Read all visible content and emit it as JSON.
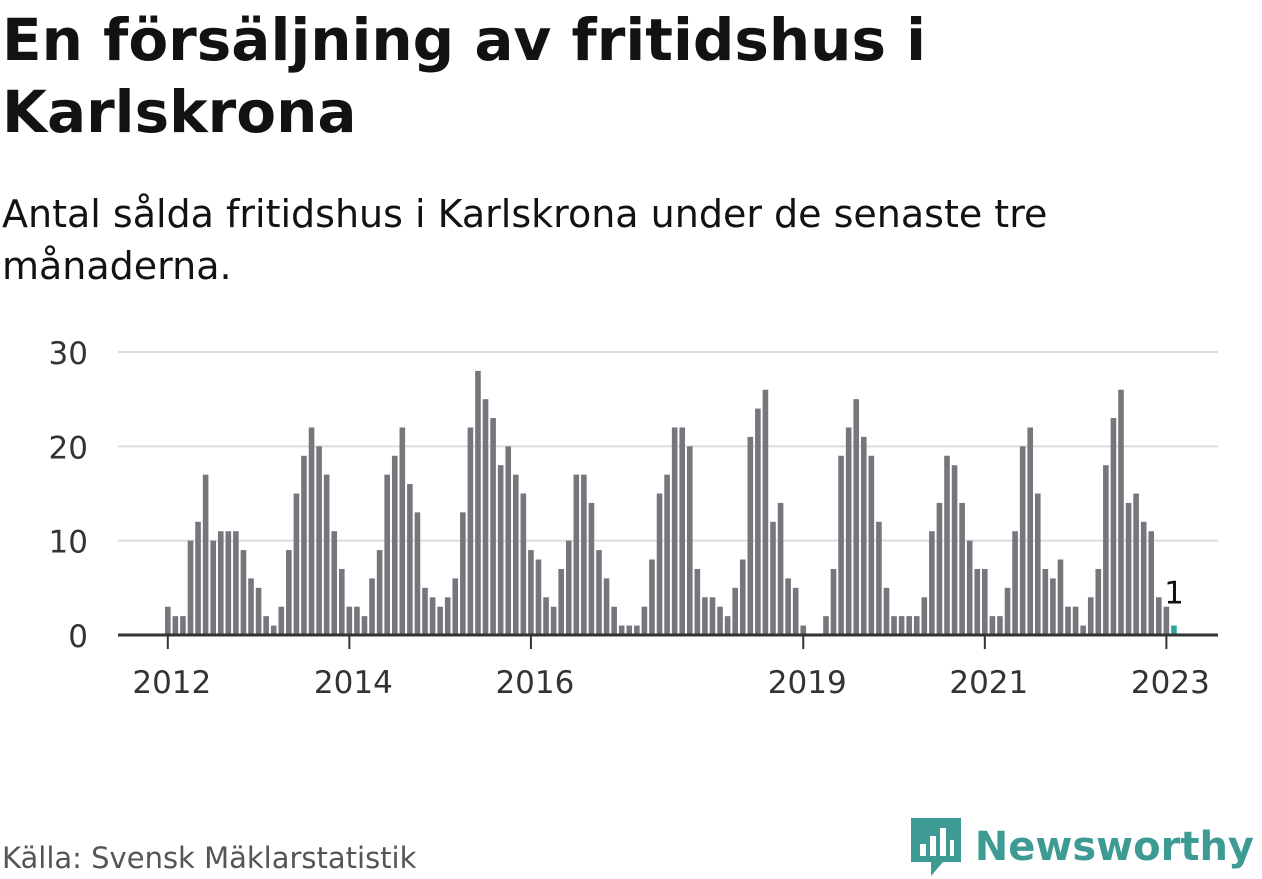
{
  "title": "En försäljning av fritidshus i Karlskrona",
  "subtitle": "Antal sålda fritidshus i Karlskrona under de senaste tre månaderna.",
  "source": "Källa: Svensk Mäklarstatistik",
  "brand": "Newsworthy",
  "colors": {
    "bar": "#76767d",
    "highlight": "#2ba59a",
    "grid": "#dcdcdc",
    "axis": "#333333",
    "brand": "#3d9b94"
  },
  "chart_data": {
    "type": "bar",
    "x_start": "2012-01",
    "ylim": [
      0,
      30
    ],
    "yticks": [
      "0",
      "10",
      "20",
      "30"
    ],
    "xticks": [
      {
        "label": "2012",
        "month": "2012-01"
      },
      {
        "label": "2014",
        "month": "2014-01"
      },
      {
        "label": "2016",
        "month": "2016-01"
      },
      {
        "label": "2019",
        "month": "2019-01"
      },
      {
        "label": "2021",
        "month": "2021-01"
      },
      {
        "label": "2023",
        "month": "2023-01"
      }
    ],
    "values": [
      3,
      2,
      2,
      10,
      12,
      17,
      10,
      11,
      11,
      11,
      9,
      6,
      5,
      2,
      1,
      3,
      9,
      15,
      19,
      22,
      20,
      17,
      11,
      7,
      3,
      3,
      2,
      6,
      9,
      17,
      19,
      22,
      16,
      13,
      5,
      4,
      3,
      4,
      6,
      13,
      22,
      28,
      25,
      23,
      18,
      20,
      17,
      15,
      9,
      8,
      4,
      3,
      7,
      10,
      17,
      17,
      14,
      9,
      6,
      3,
      1,
      1,
      1,
      3,
      8,
      15,
      17,
      22,
      22,
      20,
      7,
      4,
      4,
      3,
      2,
      5,
      8,
      21,
      24,
      26,
      12,
      14,
      6,
      5,
      1,
      0,
      0,
      2,
      7,
      19,
      22,
      25,
      21,
      19,
      12,
      5,
      2,
      2,
      2,
      2,
      4,
      11,
      14,
      19,
      18,
      14,
      10,
      7,
      7,
      2,
      2,
      5,
      11,
      20,
      22,
      15,
      7,
      6,
      8,
      3,
      3,
      1,
      4,
      7,
      18,
      23,
      26,
      14,
      15,
      12,
      11,
      4,
      3,
      1
    ],
    "highlight_last": true,
    "highlight_label": "1"
  }
}
